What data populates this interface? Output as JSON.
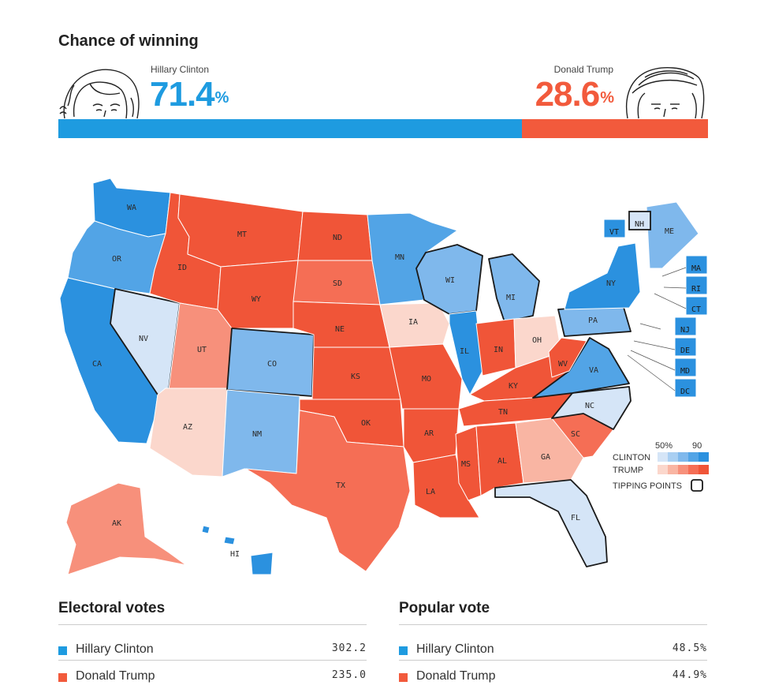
{
  "header": {
    "title": "Chance of winning",
    "clinton": {
      "name": "Hillary Clinton",
      "pct": "71.4",
      "pct_value": 71.4
    },
    "trump": {
      "name": "Donald Trump",
      "pct": "28.6",
      "pct_value": 28.6
    },
    "pct_symbol": "%"
  },
  "colors": {
    "clinton": "#1e9be0",
    "trump": "#f25a3c",
    "clinton_scale": [
      "#d5e5f7",
      "#a9cff2",
      "#7fb8ec",
      "#52a4e6",
      "#2b91df"
    ],
    "trump_scale": [
      "#fbd7cc",
      "#f9b5a3",
      "#f7907b",
      "#f56e55",
      "#f05538"
    ]
  },
  "map": {
    "states": [
      {
        "id": "WA",
        "label": "WA",
        "shade": "c5"
      },
      {
        "id": "OR",
        "label": "OR",
        "shade": "c4"
      },
      {
        "id": "CA",
        "label": "CA",
        "shade": "c5"
      },
      {
        "id": "NV",
        "label": "NV",
        "shade": "c1"
      },
      {
        "id": "ID",
        "label": "ID",
        "shade": "t5"
      },
      {
        "id": "MT",
        "label": "MT",
        "shade": "t5"
      },
      {
        "id": "WY",
        "label": "WY",
        "shade": "t5"
      },
      {
        "id": "UT",
        "label": "UT",
        "shade": "t3"
      },
      {
        "id": "AZ",
        "label": "AZ",
        "shade": "t1"
      },
      {
        "id": "CO",
        "label": "CO",
        "shade": "c3"
      },
      {
        "id": "NM",
        "label": "NM",
        "shade": "c3"
      },
      {
        "id": "ND",
        "label": "ND",
        "shade": "t5"
      },
      {
        "id": "SD",
        "label": "SD",
        "shade": "t4"
      },
      {
        "id": "NE",
        "label": "NE",
        "shade": "t5"
      },
      {
        "id": "KS",
        "label": "KS",
        "shade": "t5"
      },
      {
        "id": "OK",
        "label": "OK",
        "shade": "t5"
      },
      {
        "id": "TX",
        "label": "TX",
        "shade": "t4"
      },
      {
        "id": "MN",
        "label": "MN",
        "shade": "c4"
      },
      {
        "id": "IA",
        "label": "IA",
        "shade": "t1"
      },
      {
        "id": "MO",
        "label": "MO",
        "shade": "t5"
      },
      {
        "id": "AR",
        "label": "AR",
        "shade": "t5"
      },
      {
        "id": "LA",
        "label": "LA",
        "shade": "t5"
      },
      {
        "id": "WI",
        "label": "WI",
        "shade": "c3"
      },
      {
        "id": "IL",
        "label": "IL",
        "shade": "c5"
      },
      {
        "id": "MI",
        "label": "MI",
        "shade": "c3"
      },
      {
        "id": "IN",
        "label": "IN",
        "shade": "t5"
      },
      {
        "id": "OH",
        "label": "OH",
        "shade": "t1"
      },
      {
        "id": "KY",
        "label": "KY",
        "shade": "t5"
      },
      {
        "id": "TN",
        "label": "TN",
        "shade": "t5"
      },
      {
        "id": "MS",
        "label": "MS",
        "shade": "t5"
      },
      {
        "id": "AL",
        "label": "AL",
        "shade": "t5"
      },
      {
        "id": "GA",
        "label": "GA",
        "shade": "t2"
      },
      {
        "id": "FL",
        "label": "FL",
        "shade": "c1"
      },
      {
        "id": "SC",
        "label": "SC",
        "shade": "t4"
      },
      {
        "id": "NC",
        "label": "NC",
        "shade": "c1"
      },
      {
        "id": "VA",
        "label": "VA",
        "shade": "c4"
      },
      {
        "id": "WV",
        "label": "WV",
        "shade": "t5"
      },
      {
        "id": "PA",
        "label": "PA",
        "shade": "c3"
      },
      {
        "id": "NY",
        "label": "NY",
        "shade": "c5"
      },
      {
        "id": "ME",
        "label": "ME",
        "shade": "c3"
      },
      {
        "id": "AK",
        "label": "AK",
        "shade": "t3"
      },
      {
        "id": "HI",
        "label": "HI",
        "shade": "c5"
      }
    ],
    "boxes": [
      {
        "id": "VT",
        "label": "VT",
        "shade": "c5"
      },
      {
        "id": "NH",
        "label": "NH",
        "shade": "c1"
      },
      {
        "id": "MA",
        "label": "MA",
        "shade": "c5"
      },
      {
        "id": "RI",
        "label": "RI",
        "shade": "c5"
      },
      {
        "id": "CT",
        "label": "CT",
        "shade": "c5"
      },
      {
        "id": "NJ",
        "label": "NJ",
        "shade": "c5"
      },
      {
        "id": "DE",
        "label": "DE",
        "shade": "c5"
      },
      {
        "id": "MD",
        "label": "MD",
        "shade": "c5"
      },
      {
        "id": "DC",
        "label": "DC",
        "shade": "c5"
      }
    ],
    "tipping_points": [
      "NV",
      "CO",
      "VA",
      "MI",
      "PA",
      "WI",
      "NH",
      "NC",
      "FL"
    ],
    "legend": {
      "tick_low": "50%",
      "tick_high": "90",
      "clinton_label": "CLINTON",
      "trump_label": "TRUMP",
      "tipping_label": "TIPPING POINTS"
    }
  },
  "electoral": {
    "title": "Electoral votes",
    "rows": [
      {
        "name": "Hillary Clinton",
        "value": "302.2"
      },
      {
        "name": "Donald Trump",
        "value": "235.0"
      }
    ]
  },
  "popular": {
    "title": "Popular vote",
    "rows": [
      {
        "name": "Hillary Clinton",
        "value": "48.5%"
      },
      {
        "name": "Donald Trump",
        "value": "44.9%"
      }
    ]
  }
}
